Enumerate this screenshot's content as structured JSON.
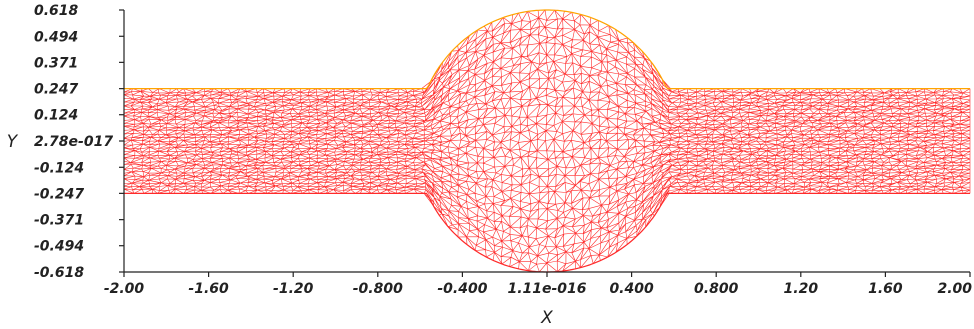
{
  "chart_data": {
    "type": "mesh",
    "xlabel": "X",
    "ylabel": "Y",
    "xlim": [
      -2.0,
      2.0
    ],
    "ylim": [
      -0.618,
      0.618
    ],
    "x_ticks": [
      {
        "value": -2.0,
        "label": "-2.00"
      },
      {
        "value": -1.6,
        "label": "-1.60"
      },
      {
        "value": -1.2,
        "label": "-1.20"
      },
      {
        "value": -0.8,
        "label": "-0.800"
      },
      {
        "value": -0.4,
        "label": "-0.400"
      },
      {
        "value": 0.0,
        "label": "1.11e-016"
      },
      {
        "value": 0.4,
        "label": "0.400"
      },
      {
        "value": 0.8,
        "label": "0.800"
      },
      {
        "value": 1.2,
        "label": "1.20"
      },
      {
        "value": 1.6,
        "label": "1.60"
      },
      {
        "value": 2.0,
        "label": "2.00"
      }
    ],
    "y_ticks": [
      {
        "value": 0.618,
        "label": "0.618"
      },
      {
        "value": 0.494,
        "label": "0.494"
      },
      {
        "value": 0.371,
        "label": "0.371"
      },
      {
        "value": 0.247,
        "label": "0.247"
      },
      {
        "value": 0.124,
        "label": "0.124"
      },
      {
        "value": 0.0,
        "label": "2.78e-017"
      },
      {
        "value": -0.124,
        "label": "-0.124"
      },
      {
        "value": -0.247,
        "label": "-0.247"
      },
      {
        "value": -0.371,
        "label": "-0.371"
      },
      {
        "value": -0.494,
        "label": "-0.494"
      },
      {
        "value": -0.618,
        "label": "-0.618"
      }
    ],
    "domain": {
      "channel_half_height": 0.247,
      "bulge_radius": 0.618,
      "bulge_start_x": -0.9,
      "bulge_end_x": 0.9
    },
    "colors": {
      "mesh": "#ff2a2a",
      "boundary": "#ffa500",
      "axis": "#222222"
    }
  }
}
